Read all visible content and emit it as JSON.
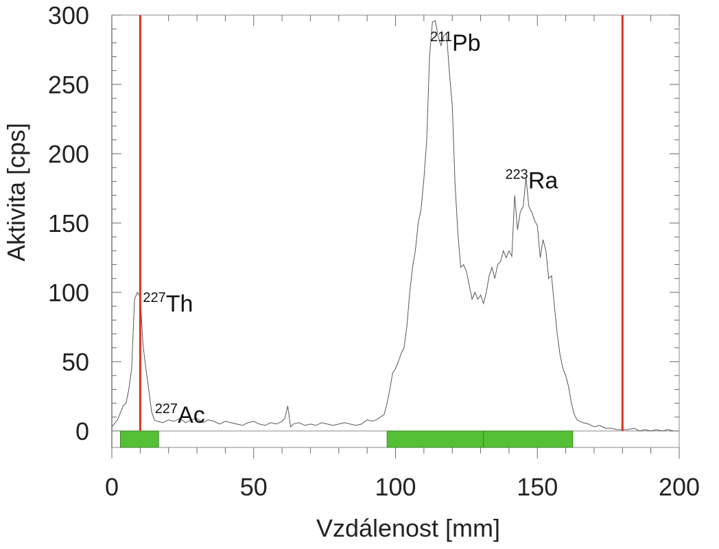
{
  "chart_data": {
    "type": "line",
    "xlabel": "Vzdálenost [mm]",
    "ylabel": "Aktivita [cps]",
    "xlim": [
      0,
      200
    ],
    "ylim": [
      0,
      300
    ],
    "x_ticks": [
      "0",
      "50",
      "100",
      "150",
      "200"
    ],
    "y_ticks": [
      "0",
      "50",
      "100",
      "150",
      "200",
      "250",
      "300"
    ],
    "grid": false,
    "colors": {
      "trace": "#555555",
      "marker": "#e03020",
      "band": "#55c035"
    },
    "series": [
      {
        "x": [
          0,
          2,
          4,
          5,
          6,
          7,
          8,
          9,
          10,
          11,
          12,
          13,
          14,
          15,
          16,
          18,
          20,
          22,
          24,
          26,
          28,
          30,
          32,
          34,
          36,
          38,
          40,
          42,
          44,
          46,
          48,
          50,
          52,
          54,
          56,
          58,
          60,
          61,
          62,
          63,
          64,
          66,
          68,
          70,
          72,
          74,
          76,
          78,
          80,
          82,
          84,
          86,
          88,
          90,
          92,
          94,
          96,
          97,
          98,
          99,
          100,
          101,
          102,
          103,
          104,
          105,
          106,
          107,
          108,
          109,
          110,
          111,
          112,
          113,
          114,
          115,
          116,
          117,
          118,
          119,
          120,
          121,
          122,
          123,
          124,
          125,
          126,
          127,
          128,
          129,
          130,
          131,
          132,
          133,
          134,
          135,
          136,
          137,
          138,
          139,
          140,
          141,
          142,
          143,
          144,
          145,
          146,
          147,
          148,
          149,
          150,
          151,
          152,
          153,
          154,
          155,
          156,
          157,
          158,
          159,
          160,
          161,
          162,
          163,
          164,
          166,
          168,
          170,
          172,
          174,
          176,
          178,
          180,
          182,
          184,
          186,
          188,
          190,
          192,
          194,
          196,
          198,
          200
        ],
        "y": [
          3,
          8,
          18,
          20,
          30,
          45,
          95,
          100,
          97,
          62,
          45,
          30,
          14,
          8,
          7,
          6,
          8,
          7,
          9,
          6,
          8,
          9,
          6,
          8,
          7,
          5,
          7,
          6,
          5,
          4,
          6,
          7,
          5,
          4,
          6,
          5,
          7,
          9,
          18,
          3,
          5,
          6,
          4,
          5,
          4,
          6,
          5,
          4,
          5,
          6,
          5,
          4,
          5,
          8,
          7,
          9,
          12,
          20,
          30,
          42,
          45,
          50,
          56,
          60,
          75,
          100,
          118,
          130,
          150,
          160,
          182,
          210,
          270,
          295,
          296,
          285,
          278,
          285,
          287,
          258,
          235,
          178,
          142,
          118,
          120,
          115,
          105,
          95,
          100,
          95,
          98,
          92,
          100,
          112,
          118,
          110,
          120,
          122,
          130,
          125,
          130,
          126,
          170,
          145,
          158,
          162,
          183,
          162,
          158,
          152,
          148,
          125,
          138,
          130,
          110,
          112,
          90,
          70,
          55,
          45,
          40,
          32,
          20,
          12,
          8,
          6,
          5,
          3,
          4,
          2,
          2,
          1,
          1,
          1,
          2,
          0,
          1,
          0,
          1,
          0,
          1,
          0,
          0
        ]
      }
    ],
    "vlines": [
      10,
      180
    ],
    "bands": [
      {
        "from": 3,
        "to": 16.5
      },
      {
        "from": 97,
        "to": 131
      },
      {
        "from": 131,
        "to": 162.5
      }
    ],
    "annotations": [
      {
        "mass": "227",
        "symbol": "Th",
        "x": 10,
        "y": 100
      },
      {
        "mass": "227",
        "symbol": "Ac",
        "x": 20,
        "y": 10
      },
      {
        "mass": "211",
        "symbol": "Pb",
        "x": 119,
        "y": 295
      },
      {
        "mass": "223",
        "symbol": "Ra",
        "x": 144,
        "y": 182
      }
    ]
  }
}
